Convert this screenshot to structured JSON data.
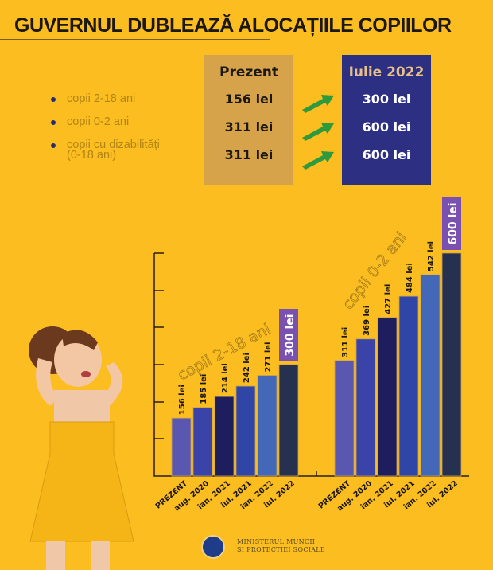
{
  "header": {
    "title": "GUVERNUL DUBLEAZĂ ALOCAȚIILE COPIILOR"
  },
  "summary": {
    "categories": [
      {
        "label": "copii 2-18 ani"
      },
      {
        "label": "copii 0-2 ani"
      },
      {
        "label_line1": "copii cu dizabilități",
        "label_line2": "(0-18 ani)"
      }
    ],
    "present": {
      "header": "Prezent",
      "values": [
        "156 lei",
        "311 lei",
        "311 lei"
      ]
    },
    "future": {
      "header": "Iulie 2022",
      "values": [
        "300 lei",
        "600 lei",
        "600 lei"
      ]
    },
    "colors": {
      "present_bg": "#d6a34a",
      "future_bg": "#2c2f82",
      "arrow": "#2e9a3e",
      "background": "#fbbd1f"
    }
  },
  "chart_data": [
    {
      "type": "bar",
      "title": "copii 2-18 ani",
      "categories": [
        "PREZENT",
        "aug. 2020",
        "ian. 2021",
        "iul. 2021",
        "ian. 2022",
        "iul. 2022"
      ],
      "values": [
        156,
        185,
        214,
        242,
        271,
        300
      ],
      "data_labels": [
        "156 lei",
        "185 lei",
        "214 lei",
        "242 lei",
        "271 lei",
        "300 lei"
      ],
      "highlight_index": 5,
      "xlabel": "",
      "ylabel": "",
      "ylim": [
        0,
        600
      ],
      "grid": false
    },
    {
      "type": "bar",
      "title": "copii 0-2 ani",
      "categories": [
        "PREZENT",
        "aug. 2020",
        "ian. 2021",
        "iul. 2021",
        "ian. 2022",
        "iul. 2022"
      ],
      "values": [
        311,
        369,
        427,
        484,
        542,
        600
      ],
      "data_labels": [
        "311 lei",
        "369 lei",
        "427 lei",
        "484 lei",
        "542 lei",
        "600 lei"
      ],
      "highlight_index": 5,
      "xlabel": "",
      "ylabel": "",
      "ylim": [
        0,
        600
      ],
      "grid": false
    }
  ],
  "bar_colors": [
    "#5a57b0",
    "#3a44a8",
    "#1e1d5e",
    "#2f46a6",
    "#4468b8",
    "#26304f"
  ],
  "highlight_label_color": "#7a50b0",
  "footer": {
    "ministry_line1": "MINISTERUL MUNCII",
    "ministry_line2": "ȘI PROTECȚIEI SOCIALE"
  }
}
